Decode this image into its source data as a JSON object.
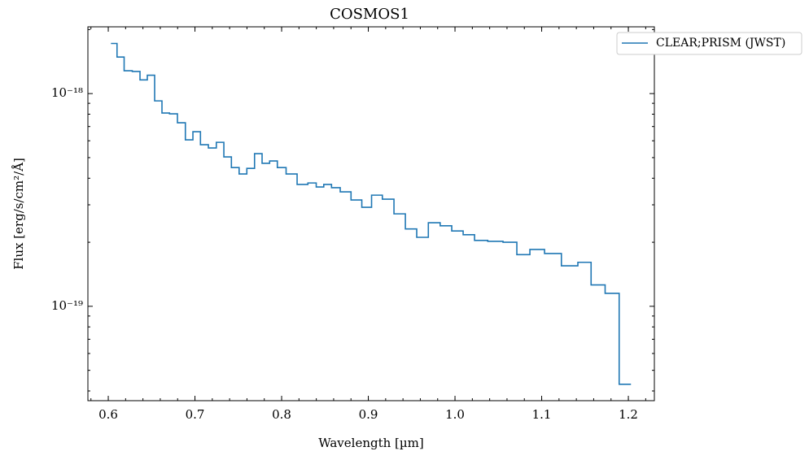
{
  "chart_data": {
    "type": "step",
    "title": "COSMOS1",
    "xlabel": "Wavelength [µm]",
    "ylabel": "Flux [erg/s/cm²/Å]",
    "x": [
      0.6066,
      0.6136,
      0.623,
      0.6324,
      0.6408,
      0.6493,
      0.6577,
      0.6662,
      0.6751,
      0.6845,
      0.6934,
      0.7019,
      0.7108,
      0.7202,
      0.7291,
      0.7376,
      0.7465,
      0.7554,
      0.7643,
      0.7732,
      0.7817,
      0.7906,
      0.7995,
      0.8108,
      0.8249,
      0.8357,
      0.8441,
      0.8531,
      0.862,
      0.8732,
      0.8869,
      0.8981,
      0.9094,
      0.923,
      0.9362,
      0.9493,
      0.9624,
      0.9761,
      0.9897,
      1.0028,
      1.016,
      1.0291,
      1.0465,
      1.0643,
      1.0784,
      1.0944,
      1.1122,
      1.1333,
      1.1502,
      1.1638,
      1.1826,
      1.1962
    ],
    "series": [
      {
        "name": "CLEAR;PRISM (JWST)",
        "color": "#1f77b4",
        "values": [
          1.72e-18,
          1.485e-18,
          1.28e-18,
          1.27e-18,
          1.16e-18,
          1.22e-18,
          9.24e-19,
          8.1e-19,
          8.03e-19,
          7.29e-19,
          6.06e-19,
          6.62e-19,
          5.75e-19,
          5.55e-19,
          5.9e-19,
          5.04e-19,
          4.49e-19,
          4.19e-19,
          4.45e-19,
          5.22e-19,
          4.7e-19,
          4.82e-19,
          4.49e-19,
          4.19e-19,
          3.74e-19,
          3.8e-19,
          3.64e-19,
          3.74e-19,
          3.61e-19,
          3.45e-19,
          3.16e-19,
          2.92e-19,
          3.33e-19,
          3.19e-19,
          2.72e-19,
          2.31e-19,
          2.11e-19,
          2.47e-19,
          2.39e-19,
          2.26e-19,
          2.17e-19,
          2.04e-19,
          2.02e-19,
          2e-19,
          1.75e-19,
          1.85e-19,
          1.77e-19,
          1.55e-19,
          1.61e-19,
          1.26e-19,
          1.15e-19,
          4.3e-20
        ]
      }
    ],
    "xlim": [
      0.5765,
      1.23
    ],
    "ylim": [
      3.6e-20,
      2.06e-18
    ],
    "ylog": true,
    "xticks": [
      0.6,
      0.7,
      0.8,
      0.9,
      {
        "value": 1,
        "label": "1.0"
      },
      1.1,
      1.2
    ],
    "yticks": [
      {
        "value": 1e-19,
        "label": "10⁻¹⁹"
      },
      {
        "value": 1e-18,
        "label": "10⁻¹⁸"
      }
    ],
    "legend": "upper right"
  }
}
